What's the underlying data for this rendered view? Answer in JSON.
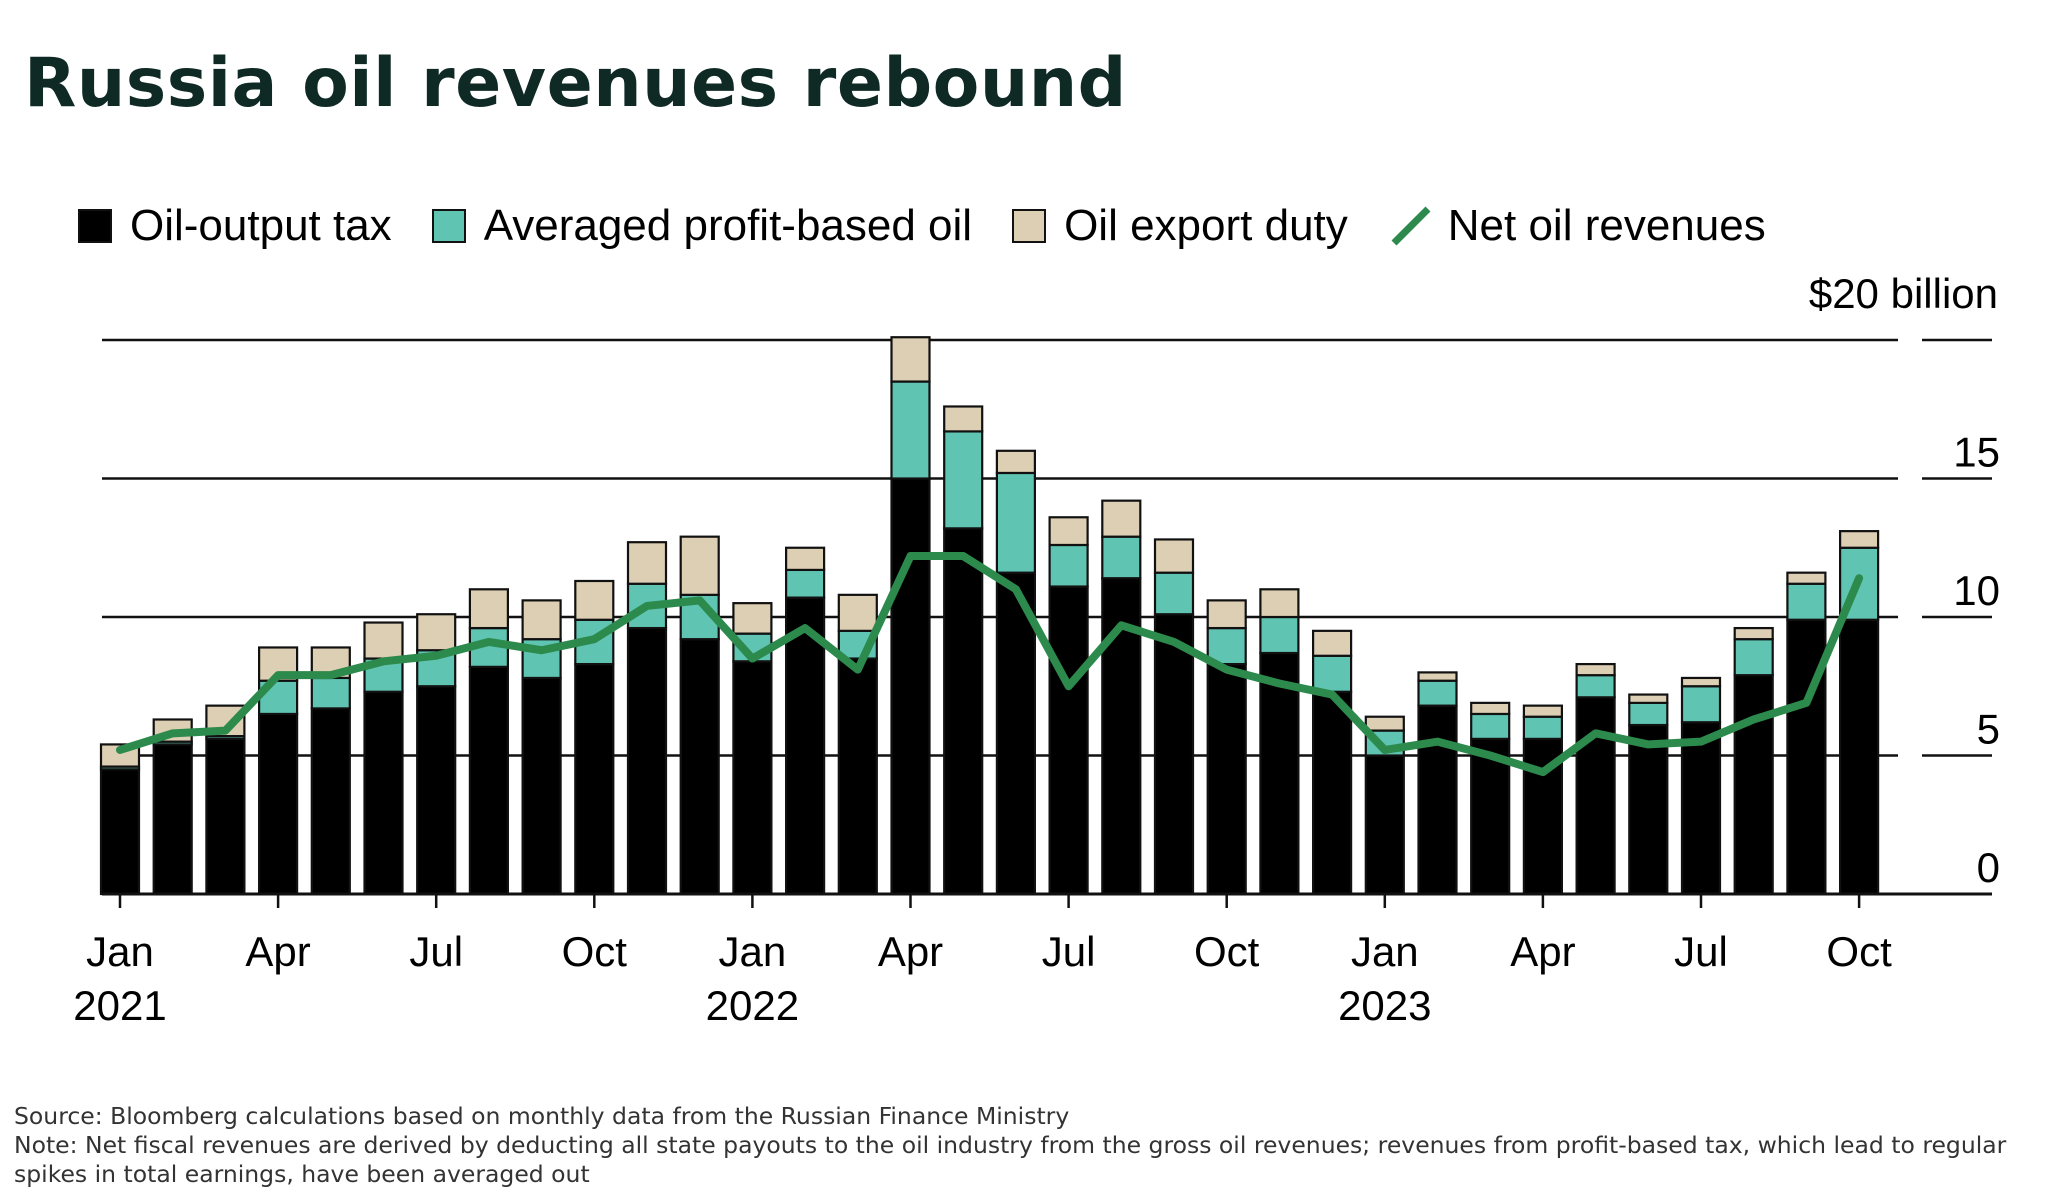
{
  "title": "Russia oil revenues rebound",
  "legend": {
    "oil_output_tax": "Oil-output tax",
    "profit_based": "Averaged profit-based oil",
    "export_duty": "Oil export duty",
    "net": "Net oil revenues"
  },
  "colors": {
    "oil_output_tax": "#000000",
    "profit_based": "#5fc4b2",
    "export_duty": "#ddcfb3",
    "net": "#2c8a4c",
    "title": "#0f2a25"
  },
  "unit_label": "$20 billion",
  "footer": {
    "source": "Source: Bloomberg calculations based on monthly data from the Russian Finance Ministry",
    "note": "Note: Net fiscal revenues are derived by deducting all state payouts to the oil industry from the gross oil revenues; revenues from profit-based tax, which lead to regular spikes in total earnings, have been averaged out"
  },
  "chart_data": {
    "type": "bar",
    "stacked": true,
    "ylim": [
      0,
      20
    ],
    "yticks": [
      0,
      5,
      10,
      15,
      20
    ],
    "ytick_labels": [
      "0",
      "5",
      "10",
      "15",
      "20"
    ],
    "grid": true,
    "months": [
      "2021-01",
      "2021-02",
      "2021-03",
      "2021-04",
      "2021-05",
      "2021-06",
      "2021-07",
      "2021-08",
      "2021-09",
      "2021-10",
      "2021-11",
      "2021-12",
      "2022-01",
      "2022-02",
      "2022-03",
      "2022-04",
      "2022-05",
      "2022-06",
      "2022-07",
      "2022-08",
      "2022-09",
      "2022-10",
      "2022-11",
      "2022-12",
      "2023-01",
      "2023-02",
      "2023-03",
      "2023-04",
      "2023-05",
      "2023-06",
      "2023-07",
      "2023-08",
      "2023-09",
      "2023-10"
    ],
    "x_ticks": [
      {
        "index": 0,
        "month": "Jan",
        "year": "2021"
      },
      {
        "index": 3,
        "month": "Apr",
        "year": ""
      },
      {
        "index": 6,
        "month": "Jul",
        "year": ""
      },
      {
        "index": 9,
        "month": "Oct",
        "year": ""
      },
      {
        "index": 12,
        "month": "Jan",
        "year": "2022"
      },
      {
        "index": 15,
        "month": "Apr",
        "year": ""
      },
      {
        "index": 18,
        "month": "Jul",
        "year": ""
      },
      {
        "index": 21,
        "month": "Oct",
        "year": ""
      },
      {
        "index": 24,
        "month": "Jan",
        "year": "2023"
      },
      {
        "index": 27,
        "month": "Apr",
        "year": ""
      },
      {
        "index": 30,
        "month": "Jul",
        "year": ""
      },
      {
        "index": 33,
        "month": "Oct",
        "year": ""
      }
    ],
    "series": [
      {
        "name": "Oil-output tax",
        "key": "oil_output_tax",
        "values": [
          4.5,
          5.4,
          5.6,
          6.5,
          6.7,
          7.3,
          7.5,
          8.2,
          7.8,
          8.3,
          9.6,
          9.2,
          8.4,
          10.7,
          8.5,
          15.0,
          13.2,
          11.6,
          11.1,
          11.4,
          10.1,
          8.3,
          8.7,
          7.3,
          5.0,
          6.8,
          5.6,
          5.6,
          7.1,
          6.1,
          6.2,
          7.9,
          9.9,
          9.9
        ]
      },
      {
        "name": "Averaged profit-based oil",
        "key": "profit_based",
        "values": [
          0.1,
          0.1,
          0.1,
          1.2,
          1.1,
          1.2,
          1.3,
          1.4,
          1.4,
          1.6,
          1.6,
          1.6,
          1.0,
          1.0,
          1.0,
          3.5,
          3.5,
          3.6,
          1.5,
          1.5,
          1.5,
          1.3,
          1.3,
          1.3,
          0.9,
          0.9,
          0.9,
          0.8,
          0.8,
          0.8,
          1.3,
          1.3,
          1.3,
          2.6
        ]
      },
      {
        "name": "Oil export duty",
        "key": "export_duty",
        "values": [
          0.8,
          0.8,
          1.1,
          1.2,
          1.1,
          1.3,
          1.3,
          1.4,
          1.4,
          1.4,
          1.5,
          2.1,
          1.1,
          0.8,
          1.3,
          1.6,
          0.9,
          0.8,
          1.0,
          1.3,
          1.2,
          1.0,
          1.0,
          0.9,
          0.5,
          0.3,
          0.4,
          0.4,
          0.4,
          0.3,
          0.3,
          0.4,
          0.4,
          0.6
        ]
      },
      {
        "name": "Net oil revenues",
        "key": "net",
        "type": "line",
        "values": [
          5.2,
          5.8,
          5.9,
          7.9,
          7.9,
          8.4,
          8.6,
          9.1,
          8.8,
          9.2,
          10.4,
          10.6,
          8.5,
          9.6,
          8.1,
          12.2,
          12.2,
          11.0,
          7.5,
          9.7,
          9.1,
          8.1,
          7.6,
          7.2,
          5.2,
          5.5,
          5.0,
          4.4,
          5.8,
          5.4,
          5.5,
          6.3,
          6.9,
          11.4
        ]
      }
    ]
  }
}
